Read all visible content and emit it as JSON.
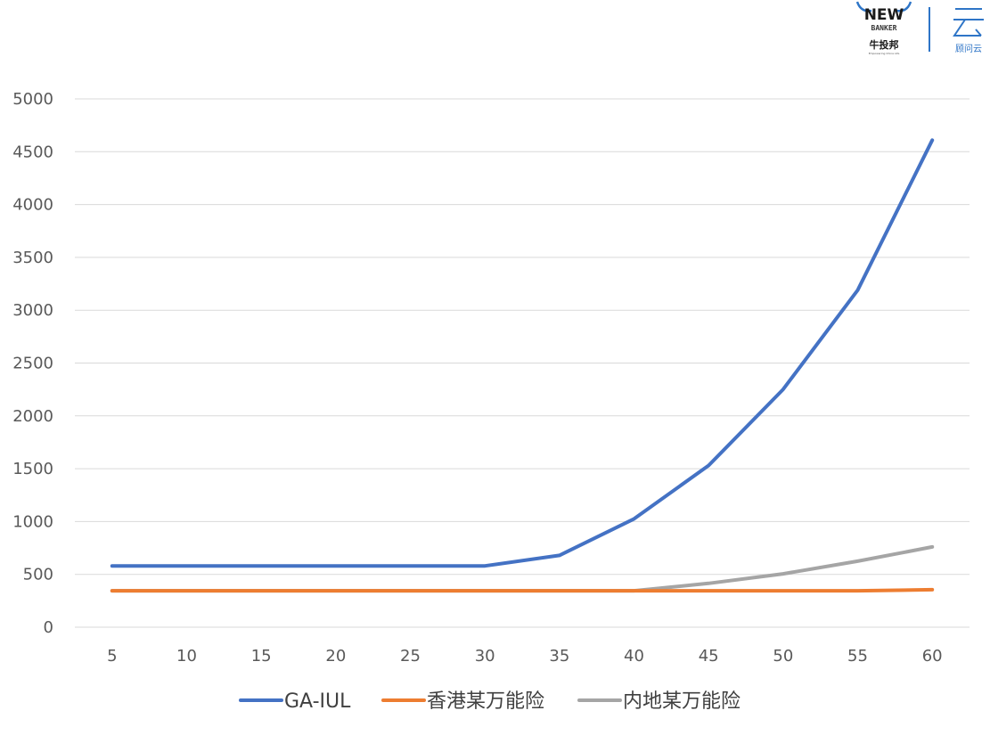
{
  "brand": {
    "left_logo": {
      "line1": "NEW",
      "line2": "BANKER",
      "line3": "牛投邦",
      "tagline": "Empowering China Life"
    },
    "right_logo": {
      "mark": "云",
      "text": "顾问云",
      "color": "#2e75c7"
    },
    "divider_color": "#2e75c7"
  },
  "chart_data": {
    "type": "line",
    "title": "",
    "xlabel": "",
    "ylabel": "",
    "categories": [
      5,
      10,
      15,
      20,
      25,
      30,
      35,
      40,
      45,
      50,
      55,
      60
    ],
    "ylim": [
      0,
      5000
    ],
    "yticks": [
      0,
      500,
      1000,
      1500,
      2000,
      2500,
      3000,
      3500,
      4000,
      4500,
      5000
    ],
    "grid": true,
    "legend_position": "bottom",
    "series": [
      {
        "name": "GA-IUL",
        "color": "#4472c4",
        "values": [
          580,
          580,
          580,
          580,
          580,
          580,
          680,
          1025,
          1530,
          2250,
          3190,
          4610
        ]
      },
      {
        "name": "香港某万能险",
        "color": "#ed7d31",
        "values": [
          345,
          345,
          345,
          345,
          345,
          345,
          345,
          345,
          345,
          345,
          345,
          355
        ]
      },
      {
        "name": "内地某万能险",
        "color": "#a5a5a5",
        "values": [
          345,
          345,
          345,
          345,
          345,
          345,
          345,
          345,
          415,
          505,
          625,
          760
        ]
      }
    ]
  }
}
